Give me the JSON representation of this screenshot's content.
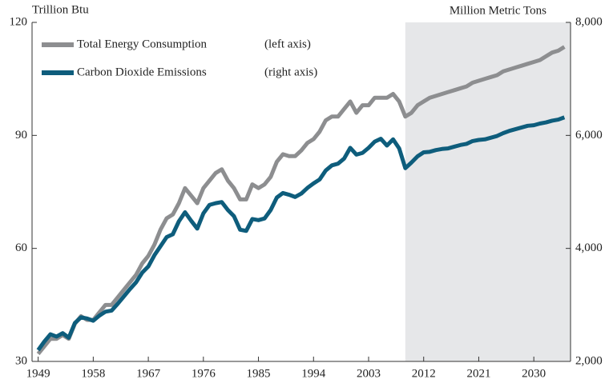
{
  "chart_data": {
    "type": "line",
    "y_label": "Trillion Btu",
    "y2_label": "Million Metric Tons",
    "x": [
      1949,
      1950,
      1951,
      1952,
      1953,
      1954,
      1955,
      1956,
      1957,
      1958,
      1959,
      1960,
      1961,
      1962,
      1963,
      1964,
      1965,
      1966,
      1967,
      1968,
      1969,
      1970,
      1971,
      1972,
      1973,
      1974,
      1975,
      1976,
      1977,
      1978,
      1979,
      1980,
      1981,
      1982,
      1983,
      1984,
      1985,
      1986,
      1987,
      1988,
      1989,
      1990,
      1991,
      1992,
      1993,
      1994,
      1995,
      1996,
      1997,
      1998,
      1999,
      2000,
      2001,
      2002,
      2003,
      2004,
      2005,
      2006,
      2007,
      2008,
      2009,
      2010,
      2011,
      2012,
      2013,
      2014,
      2015,
      2016,
      2017,
      2018,
      2019,
      2020,
      2021,
      2022,
      2023,
      2024,
      2025,
      2026,
      2027,
      2028,
      2029,
      2030,
      2031,
      2032,
      2033,
      2034,
      2035
    ],
    "series": [
      {
        "name": "Total Energy Consumption",
        "legend_note": "(left axis)",
        "color": "#8d8e90",
        "axis": "y",
        "values": [
          32,
          34,
          36,
          36,
          37,
          36,
          40,
          42,
          41,
          41,
          43,
          45,
          45,
          47,
          49,
          51,
          53,
          56,
          58,
          61,
          65,
          68,
          69,
          72,
          76,
          74,
          72,
          76,
          78,
          80,
          81,
          78,
          76,
          73,
          73,
          77,
          76,
          77,
          79,
          83,
          85,
          84.5,
          84.5,
          86,
          88,
          89,
          91,
          94,
          95,
          95,
          97,
          99,
          96,
          98,
          98,
          100,
          100,
          100,
          101,
          99,
          95,
          96,
          98,
          99,
          100,
          100.5,
          101,
          101.5,
          102,
          102.5,
          103,
          104,
          104.5,
          105,
          105.5,
          106,
          107,
          107.5,
          108,
          108.5,
          109,
          109.5,
          110,
          111,
          112,
          112.5,
          113.5
        ]
      },
      {
        "name": "Carbon Dioxide Emissions",
        "legend_note": "(right axis)",
        "color": "#0e5d7c",
        "axis": "y2",
        "values": [
          2200,
          2350,
          2480,
          2440,
          2500,
          2420,
          2680,
          2780,
          2760,
          2720,
          2810,
          2880,
          2900,
          3020,
          3150,
          3280,
          3400,
          3570,
          3680,
          3880,
          4040,
          4200,
          4250,
          4480,
          4640,
          4490,
          4350,
          4620,
          4770,
          4800,
          4820,
          4680,
          4570,
          4330,
          4310,
          4520,
          4500,
          4530,
          4680,
          4900,
          4980,
          4950,
          4910,
          4970,
          5070,
          5150,
          5220,
          5380,
          5470,
          5500,
          5590,
          5780,
          5660,
          5690,
          5780,
          5890,
          5940,
          5820,
          5930,
          5770,
          5420,
          5520,
          5630,
          5700,
          5710,
          5740,
          5760,
          5770,
          5800,
          5830,
          5850,
          5900,
          5920,
          5930,
          5960,
          5990,
          6040,
          6080,
          6110,
          6140,
          6170,
          6180,
          6210,
          6230,
          6260,
          6280,
          6320
        ]
      }
    ],
    "xlim": [
      1948,
      2036
    ],
    "xticks": [
      1949,
      1958,
      1967,
      1976,
      1985,
      1994,
      2003,
      2012,
      2021,
      2030
    ],
    "ylim": [
      30,
      120
    ],
    "yticks": [
      30,
      60,
      90,
      120
    ],
    "y2lim": [
      2000,
      8000
    ],
    "y2ticks": [
      {
        "value": 2000,
        "label": "2,000"
      },
      {
        "value": 4000,
        "label": "4,000"
      },
      {
        "value": 6000,
        "label": "6,000"
      },
      {
        "value": 8000,
        "label": "8,000"
      }
    ],
    "projection_start": 2009,
    "shade_color": "#e6e7e9"
  }
}
